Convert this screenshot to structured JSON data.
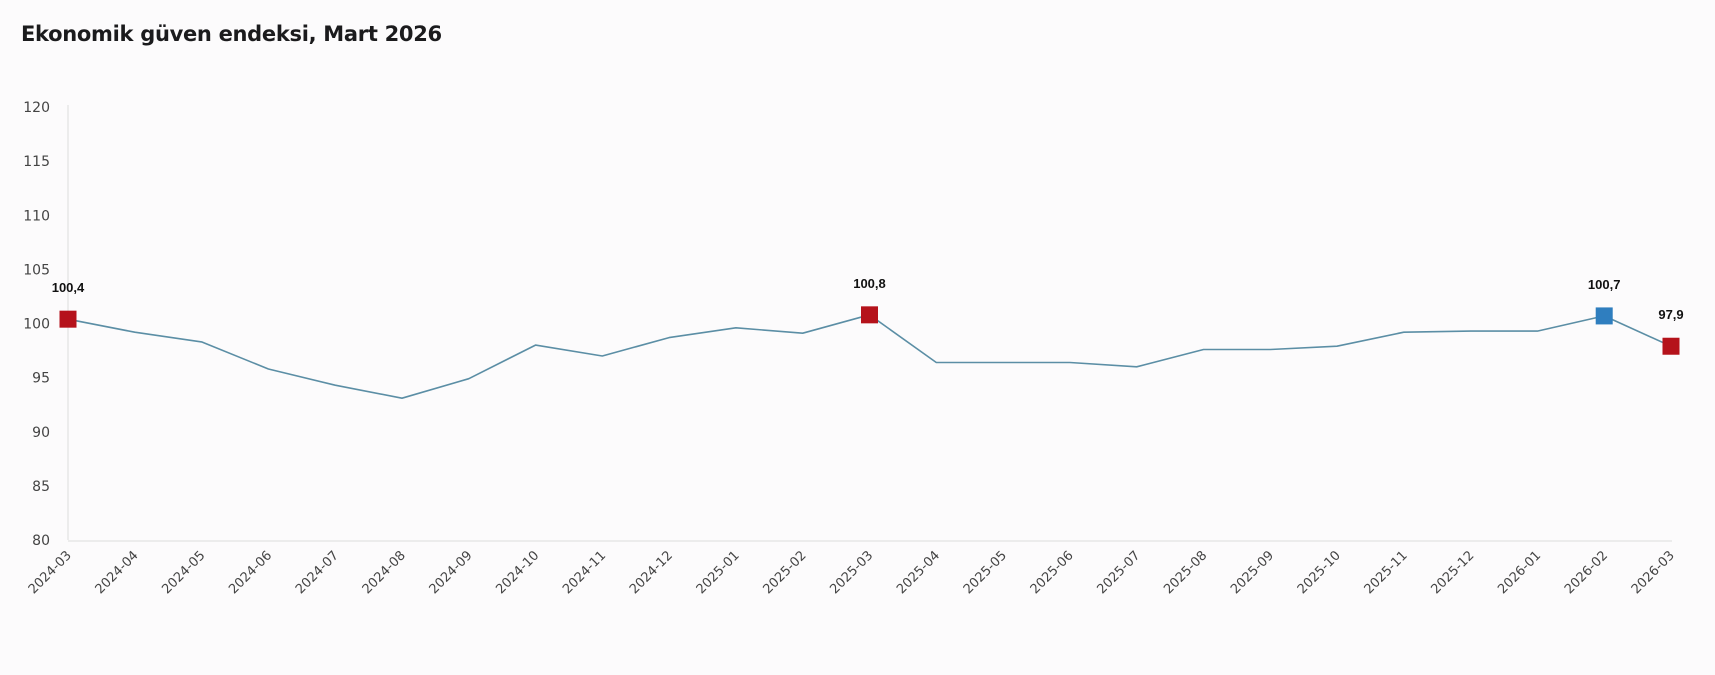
{
  "title": "Ekonomik güven endeksi, Mart 2026",
  "colors": {
    "line": "#5b8ea5",
    "marker_red": "#b5121b",
    "marker_blue": "#2f7ebf",
    "axis": "#dcdcdc",
    "tick_text": "#444444"
  },
  "chart_data": {
    "type": "line",
    "title": "Ekonomik güven endeksi, Mart 2026",
    "xlabel": "",
    "ylabel": "",
    "ylim": [
      80,
      120
    ],
    "yticks": [
      80,
      85,
      90,
      95,
      100,
      105,
      110,
      115,
      120
    ],
    "grid": false,
    "legend": null,
    "categories": [
      "2024-03",
      "2024-04",
      "2024-05",
      "2024-06",
      "2024-07",
      "2024-08",
      "2024-09",
      "2024-10",
      "2024-11",
      "2024-12",
      "2025-01",
      "2025-02",
      "2025-03",
      "2025-04",
      "2025-05",
      "2025-06",
      "2025-07",
      "2025-08",
      "2025-09",
      "2025-10",
      "2025-11",
      "2025-12",
      "2026-01",
      "2026-02",
      "2026-03"
    ],
    "series": [
      {
        "name": "Ekonomik güven endeksi",
        "values": [
          100.4,
          99.2,
          98.3,
          95.8,
          94.3,
          93.1,
          94.9,
          98.0,
          97.0,
          98.7,
          99.6,
          99.1,
          100.8,
          96.4,
          96.4,
          96.4,
          96.0,
          97.6,
          97.6,
          97.9,
          99.2,
          99.3,
          99.3,
          100.7,
          97.9
        ]
      }
    ],
    "annotations": [
      {
        "index": 0,
        "label": "100,4",
        "marker": "red"
      },
      {
        "index": 12,
        "label": "100,8",
        "marker": "red"
      },
      {
        "index": 23,
        "label": "100,7",
        "marker": "blue"
      },
      {
        "index": 24,
        "label": "97,9",
        "marker": "red"
      }
    ]
  }
}
